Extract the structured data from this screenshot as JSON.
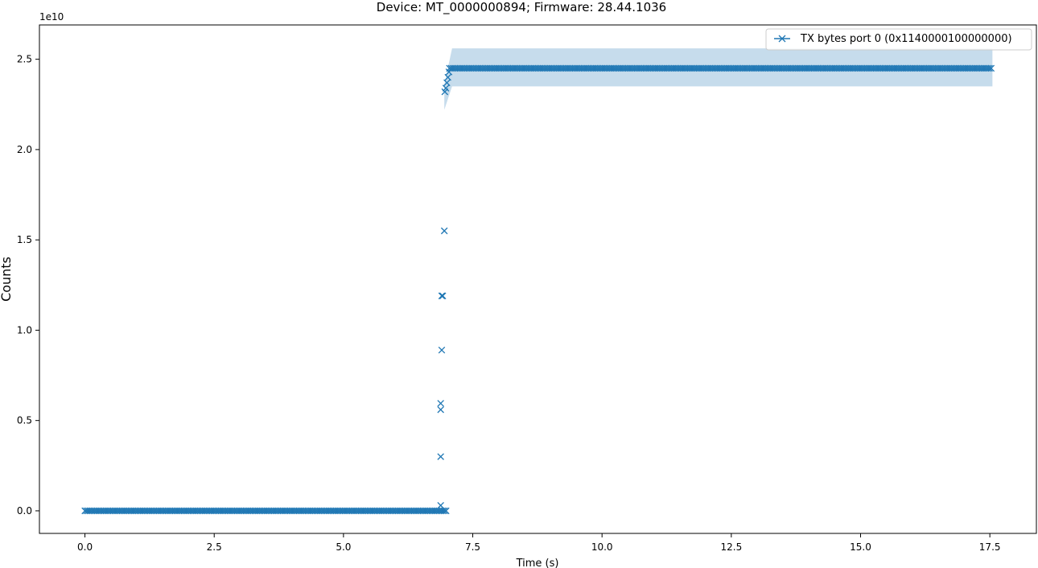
{
  "chart_data": {
    "type": "scatter",
    "title": "Device: MT_0000000894; Firmware: 28.44.1036",
    "xlabel": "Time (s)",
    "ylabel": "Counts",
    "y_offset_label": "1e10",
    "xlim": [
      -0.88,
      18.4
    ],
    "ylim": [
      -1.25,
      26.9
    ],
    "y_scale_factor": 10000000000.0,
    "x_ticks": [
      0.0,
      2.5,
      5.0,
      7.5,
      10.0,
      12.5,
      15.0,
      17.5
    ],
    "x_tick_labels": [
      "0.0",
      "2.5",
      "5.0",
      "7.5",
      "10.0",
      "12.5",
      "15.0",
      "17.5"
    ],
    "y_ticks": [
      0.0,
      5.0,
      10.0,
      15.0,
      20.0,
      25.0
    ],
    "y_tick_labels": [
      "0.0",
      "0.5",
      "1.0",
      "1.5",
      "2.0",
      "2.5"
    ],
    "grid": false,
    "legend_position": "top-right",
    "colors": {
      "series": "#1f77b4",
      "band": "#c6dcec"
    },
    "series": [
      {
        "name": "TX bytes port 0 (0x1140000100000000)",
        "marker": "x",
        "baseline": {
          "x_start": 0.0,
          "x_end": 7.0,
          "value": 0.0
        },
        "plateau": {
          "x_start": 7.05,
          "x_end": 17.55,
          "value": 24.5
        },
        "transition_points": [
          {
            "x": 6.88,
            "y": 0.3
          },
          {
            "x": 6.88,
            "y": 3.0
          },
          {
            "x": 6.88,
            "y": 5.6
          },
          {
            "x": 6.88,
            "y": 5.95
          },
          {
            "x": 6.9,
            "y": 8.9
          },
          {
            "x": 6.9,
            "y": 11.9
          },
          {
            "x": 6.92,
            "y": 11.9
          },
          {
            "x": 6.95,
            "y": 15.5
          },
          {
            "x": 6.96,
            "y": 23.2
          },
          {
            "x": 6.98,
            "y": 23.4
          },
          {
            "x": 7.0,
            "y": 23.7
          },
          {
            "x": 7.02,
            "y": 24.0
          },
          {
            "x": 7.04,
            "y": 24.3
          }
        ],
        "band": {
          "upper": [
            [
              6.95,
              23.6
            ],
            [
              7.1,
              25.6
            ],
            [
              17.55,
              25.6
            ]
          ],
          "lower": [
            [
              17.55,
              23.5
            ],
            [
              7.1,
              23.5
            ],
            [
              6.95,
              22.2
            ]
          ]
        }
      }
    ]
  }
}
